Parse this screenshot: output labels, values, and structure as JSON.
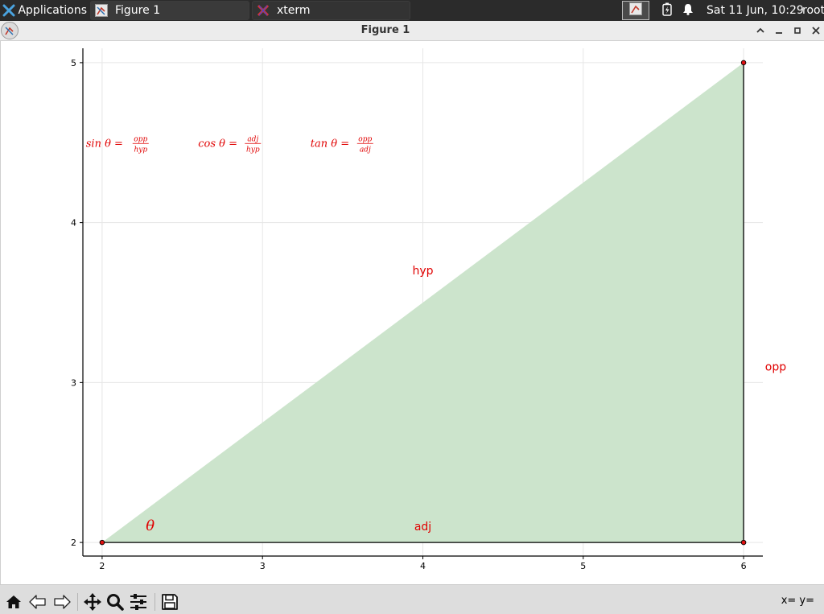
{
  "taskbar": {
    "apps_label": "Applications",
    "tasks": [
      {
        "label": "Figure 1"
      },
      {
        "label": "xterm"
      }
    ],
    "clock": "Sat 11 Jun, 10:29",
    "user": "root",
    "icons": [
      "applications-icon",
      "figure-app-icon",
      "xterm-app-icon",
      "window-icon",
      "battery-icon",
      "bell-icon"
    ]
  },
  "window": {
    "title": "Figure 1",
    "controls": [
      "shade-up",
      "minimize",
      "maximize",
      "close"
    ]
  },
  "toolbar": {
    "tools": [
      "home",
      "back",
      "forward",
      "pan",
      "zoom",
      "configure-subplots",
      "save"
    ],
    "coords_label": "x= y="
  },
  "colors": {
    "fill": "#cce4cc",
    "annotation": "#e00000",
    "axes": "#000000",
    "grid": "#e6e6e6"
  },
  "chart_data": {
    "type": "area",
    "title": "",
    "xlabel": "",
    "ylabel": "",
    "xlim": [
      1.88,
      6.12
    ],
    "ylim": [
      1.915,
      5.09
    ],
    "xticks": [
      2,
      3,
      4,
      5,
      6
    ],
    "yticks": [
      2,
      3,
      4,
      5
    ],
    "grid": true,
    "triangle": {
      "x": [
        2,
        6,
        6
      ],
      "y": [
        2,
        2,
        5
      ]
    },
    "points": [
      {
        "x": 2,
        "y": 2
      },
      {
        "x": 6,
        "y": 2
      },
      {
        "x": 6,
        "y": 5
      }
    ],
    "lines": [
      {
        "x": [
          2,
          6
        ],
        "y": [
          2,
          2
        ]
      },
      {
        "x": [
          6,
          6
        ],
        "y": [
          2,
          5
        ]
      }
    ],
    "annotations": [
      {
        "text": "hyp",
        "x": 4,
        "y": 3.7
      },
      {
        "text": "adj",
        "x": 4,
        "y": 2.1
      },
      {
        "text": "opp",
        "x": 6.2,
        "y": 3.1
      },
      {
        "text": "θ",
        "x": 2.3,
        "y": 2.1
      }
    ],
    "formulas": [
      {
        "fn": "sin",
        "num": "opp",
        "den": "hyp",
        "x": 2.2,
        "y": 4.5
      },
      {
        "fn": "cos",
        "num": "adj",
        "den": "hyp",
        "x": 2.9,
        "y": 4.5
      },
      {
        "fn": "tan",
        "num": "opp",
        "den": "adj",
        "x": 3.6,
        "y": 4.5
      }
    ]
  }
}
